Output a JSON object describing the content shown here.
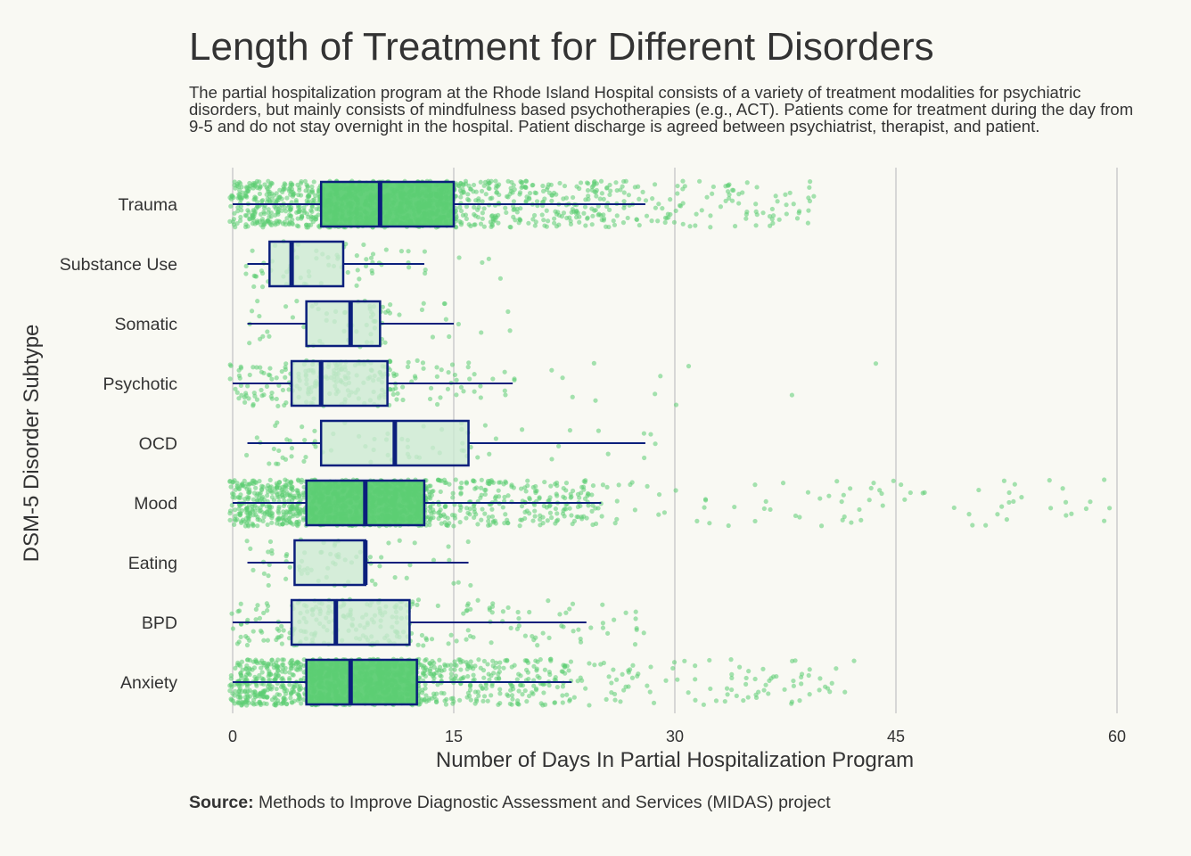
{
  "chart_data": {
    "type": "boxplot",
    "title": "Length of Treatment for Different Disorders",
    "subtitle": "The partial hospitalization program at the Rhode Island Hospital consists of a variety of treatment modalities for psychiatric disorders, but mainly consists of mindfulness based psychotherapies (e.g., ACT). Patients come for treatment during the day from 9-5 and do not stay overnight in the hospital. Patient discharge is agreed between psychiatrist, therapist, and patient.",
    "xlabel": "Number of Days In Partial Hospitalization Program",
    "ylabel": "DSM-5 Disorder Subtype",
    "xlim": [
      0,
      60
    ],
    "xticks": [
      0,
      15,
      30,
      45,
      60
    ],
    "grid": "vertical",
    "caption_label": "Source:",
    "caption_text": " Methods to Improve Diagnostic Assessment and Services (MIDAS) project",
    "colors": {
      "box_light": "#ccead2",
      "box_dark": "#5ccd73",
      "point": "#5ccd73",
      "line": "#0b1f7c",
      "grid": "#cccccc"
    },
    "categories": [
      "Trauma",
      "Substance Use",
      "Somatic",
      "Psychotic",
      "OCD",
      "Mood",
      "Eating",
      "BPD",
      "Anxiety"
    ],
    "boxes": [
      {
        "category": "Trauma",
        "whisker_low": 0,
        "q1": 6,
        "median": 10,
        "q3": 15,
        "whisker_high": 28,
        "density": "high",
        "max_point": 39.5
      },
      {
        "category": "Substance Use",
        "whisker_low": 1,
        "q1": 2.5,
        "median": 4,
        "q3": 7.5,
        "whisker_high": 13,
        "density": "low",
        "max_point": 18
      },
      {
        "category": "Somatic",
        "whisker_low": 1,
        "q1": 5,
        "median": 8,
        "q3": 10,
        "whisker_high": 15,
        "density": "low",
        "max_point": 21.5
      },
      {
        "category": "Psychotic",
        "whisker_low": 0,
        "q1": 4,
        "median": 6,
        "q3": 10.5,
        "whisker_high": 19,
        "density": "medium",
        "max_point": 44.5
      },
      {
        "category": "OCD",
        "whisker_low": 1,
        "q1": 6,
        "median": 11,
        "q3": 16,
        "whisker_high": 28,
        "density": "low",
        "max_point": 28
      },
      {
        "category": "Mood",
        "whisker_low": 0,
        "q1": 5,
        "median": 9,
        "q3": 13,
        "whisker_high": 25,
        "density": "high",
        "max_point": 59.5
      },
      {
        "category": "Eating",
        "whisker_low": 1,
        "q1": 4.2,
        "median": 9,
        "q3": 9,
        "whisker_high": 16,
        "density": "low",
        "max_point": 16
      },
      {
        "category": "BPD",
        "whisker_low": 0,
        "q1": 4,
        "median": 7,
        "q3": 12,
        "whisker_high": 24,
        "density": "medium",
        "max_point": 28
      },
      {
        "category": "Anxiety",
        "whisker_low": 0,
        "q1": 5,
        "median": 8,
        "q3": 12.5,
        "whisker_high": 23,
        "density": "high",
        "max_point": 42
      }
    ]
  }
}
